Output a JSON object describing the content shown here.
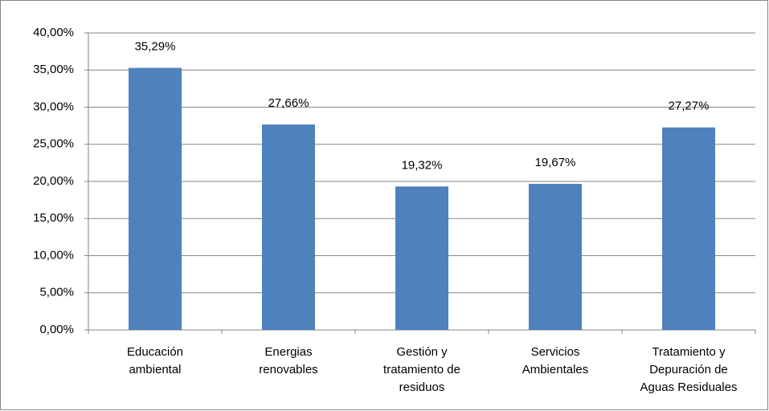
{
  "chart_data": {
    "type": "bar",
    "categories": [
      "Educación ambiental",
      "Energias renovables",
      "Gestión y tratamiento de residuos",
      "Servicios Ambientales",
      "Tratamiento y Depuración de Aguas Residuales"
    ],
    "values": [
      35.29,
      27.66,
      19.32,
      19.67,
      27.27
    ],
    "value_labels": [
      "35,29%",
      "27,66%",
      "19,32%",
      "19,67%",
      "27,27%"
    ],
    "color": "#4f81bd",
    "ylim": [
      0,
      40
    ],
    "yticks": [
      {
        "value": 0,
        "label": "0,00%"
      },
      {
        "value": 5,
        "label": "5,00%"
      },
      {
        "value": 10,
        "label": "10,00%"
      },
      {
        "value": 15,
        "label": "15,00%"
      },
      {
        "value": 20,
        "label": "20,00%"
      },
      {
        "value": 25,
        "label": "25,00%"
      },
      {
        "value": 30,
        "label": "30,00%"
      },
      {
        "value": 35,
        "label": "35,00%"
      },
      {
        "value": 40,
        "label": "40,00%"
      }
    ],
    "grid": true
  }
}
